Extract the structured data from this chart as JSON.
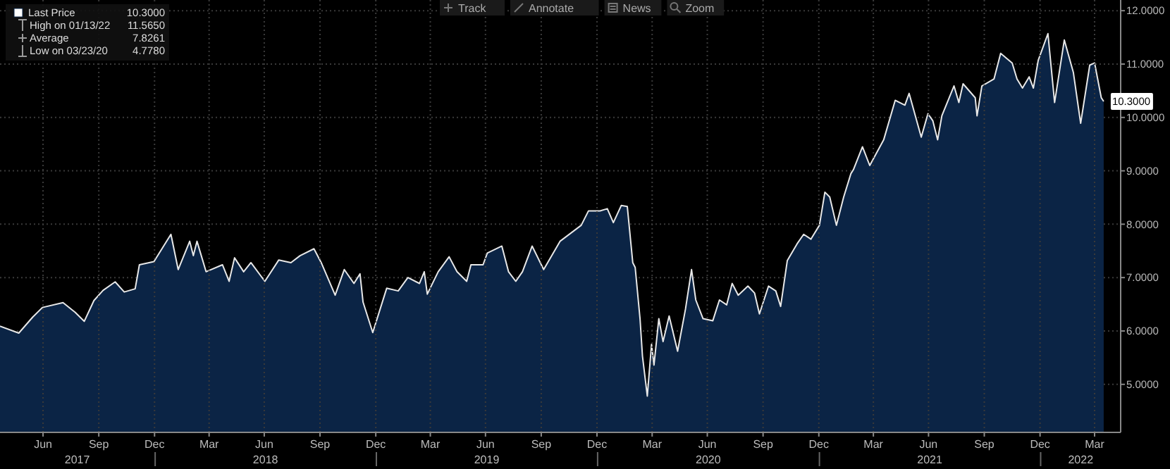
{
  "chart_data": {
    "type": "area",
    "legend": "top left",
    "grid": true,
    "xlim": [
      "2017-04-20",
      "2022-05-13"
    ],
    "xticks": [
      {
        "value": "2017-06-30",
        "label": "Jun"
      },
      {
        "value": "2017-09-30",
        "label": "Sep"
      },
      {
        "value": "2017-12-31",
        "label": "Dec"
      },
      {
        "value": "2018-03-31",
        "label": "Mar"
      },
      {
        "value": "2018-06-30",
        "label": "Jun"
      },
      {
        "value": "2018-09-30",
        "label": "Sep"
      },
      {
        "value": "2018-12-31",
        "label": "Dec"
      },
      {
        "value": "2019-03-31",
        "label": "Mar"
      },
      {
        "value": "2019-06-30",
        "label": "Jun"
      },
      {
        "value": "2019-09-30",
        "label": "Sep"
      },
      {
        "value": "2019-12-31",
        "label": "Dec"
      },
      {
        "value": "2020-03-31",
        "label": "Mar"
      },
      {
        "value": "2020-06-30",
        "label": "Jun"
      },
      {
        "value": "2020-09-30",
        "label": "Sep"
      },
      {
        "value": "2020-12-31",
        "label": "Dec"
      },
      {
        "value": "2021-03-31",
        "label": "Mar"
      },
      {
        "value": "2021-06-30",
        "label": "Jun"
      },
      {
        "value": "2021-09-30",
        "label": "Sep"
      },
      {
        "value": "2021-12-31",
        "label": "Dec"
      },
      {
        "value": "2022-03-31",
        "label": "Mar"
      }
    ],
    "ylim": [
      4.1,
      12.2
    ],
    "yticks": [
      {
        "value": 5,
        "label": "5.0000"
      },
      {
        "value": 6,
        "label": "6.0000"
      },
      {
        "value": 7,
        "label": "7.0000"
      },
      {
        "value": 8,
        "label": "8.0000"
      },
      {
        "value": 9,
        "label": "9.0000"
      },
      {
        "value": 10,
        "label": "10.0000"
      },
      {
        "value": 11,
        "label": "11.0000"
      },
      {
        "value": 12,
        "label": "12.0000"
      }
    ],
    "x": [
      "2017-04-20",
      "2017-05-21",
      "2017-06-13",
      "2017-06-29",
      "2017-08-02",
      "2017-08-22",
      "2017-09-06",
      "2017-09-22",
      "2017-10-07",
      "2017-10-27",
      "2017-11-11",
      "2017-11-29",
      "2017-12-06",
      "2017-12-30",
      "2018-01-27",
      "2018-02-08",
      "2018-02-27",
      "2018-03-05",
      "2018-03-11",
      "2018-03-26",
      "2018-04-22",
      "2018-05-03",
      "2018-05-12",
      "2018-05-27",
      "2018-06-08",
      "2018-07-01",
      "2018-07-24",
      "2018-08-13",
      "2018-08-28",
      "2018-09-20",
      "2018-10-02",
      "2018-10-25",
      "2018-11-09",
      "2018-11-25",
      "2018-12-05",
      "2018-12-10",
      "2018-12-26",
      "2019-01-18",
      "2019-02-06",
      "2019-02-22",
      "2019-03-13",
      "2019-03-21",
      "2019-03-26",
      "2019-04-13",
      "2019-05-01",
      "2019-05-14",
      "2019-05-30",
      "2019-06-06",
      "2019-06-26",
      "2019-07-03",
      "2019-07-27",
      "2019-08-07",
      "2019-08-19",
      "2019-08-30",
      "2019-09-15",
      "2019-10-04",
      "2019-10-31",
      "2019-12-05",
      "2019-12-17",
      "2020-01-05",
      "2020-01-17",
      "2020-01-27",
      "2020-02-09",
      "2020-02-19",
      "2020-02-28",
      "2020-03-03",
      "2020-03-11",
      "2020-03-15",
      "2020-03-23",
      "2020-03-30",
      "2020-04-03",
      "2020-04-11",
      "2020-04-18",
      "2020-04-28",
      "2020-05-12",
      "2020-05-25",
      "2020-06-04",
      "2020-06-11",
      "2020-06-23",
      "2020-07-09",
      "2020-07-20",
      "2020-08-01",
      "2020-08-10",
      "2020-08-20",
      "2020-09-05",
      "2020-09-16",
      "2020-09-24",
      "2020-10-09",
      "2020-10-21",
      "2020-10-29",
      "2020-11-09",
      "2020-11-25",
      "2020-12-06",
      "2020-12-18",
      "2021-01-01",
      "2021-01-10",
      "2021-01-18",
      "2021-01-29",
      "2021-02-10",
      "2021-02-22",
      "2021-02-26",
      "2021-03-13",
      "2021-03-25",
      "2021-04-17",
      "2021-05-06",
      "2021-05-22",
      "2021-05-29",
      "2021-06-18",
      "2021-06-29",
      "2021-07-07",
      "2021-07-15",
      "2021-07-22",
      "2021-08-11",
      "2021-08-19",
      "2021-08-26",
      "2021-09-15",
      "2021-09-18",
      "2021-09-26",
      "2021-10-16",
      "2021-10-27",
      "2021-11-15",
      "2021-11-23",
      "2021-12-02",
      "2021-12-13",
      "2021-12-20",
      "2021-12-28",
      "2022-01-13",
      "2022-01-24",
      "2022-02-09",
      "2022-02-24",
      "2022-03-08",
      "2022-03-23",
      "2022-03-31",
      "2022-04-11",
      "2022-04-15"
    ],
    "series": [
      {
        "name": "Last Price",
        "color": "#0b2445",
        "values": [
          6.09,
          5.96,
          6.26,
          6.44,
          6.53,
          6.35,
          6.18,
          6.57,
          6.76,
          6.92,
          6.73,
          6.79,
          7.24,
          7.3,
          7.81,
          7.15,
          7.68,
          7.41,
          7.68,
          7.11,
          7.24,
          6.93,
          7.37,
          7.11,
          7.28,
          6.93,
          7.33,
          7.28,
          7.41,
          7.54,
          7.28,
          6.67,
          7.15,
          6.89,
          7.07,
          6.54,
          5.97,
          6.8,
          6.75,
          7.0,
          6.89,
          7.11,
          6.69,
          7.11,
          7.39,
          7.11,
          6.93,
          7.24,
          7.24,
          7.46,
          7.59,
          7.11,
          6.93,
          7.11,
          7.59,
          7.15,
          7.68,
          7.98,
          8.25,
          8.25,
          8.29,
          8.03,
          8.35,
          8.33,
          7.28,
          7.19,
          6.23,
          5.53,
          4.78,
          5.75,
          5.36,
          6.23,
          5.8,
          6.28,
          5.62,
          6.41,
          7.15,
          6.58,
          6.23,
          6.19,
          6.58,
          6.49,
          6.89,
          6.67,
          6.84,
          6.71,
          6.32,
          6.84,
          6.75,
          6.46,
          7.32,
          7.63,
          7.81,
          7.72,
          7.98,
          8.6,
          8.51,
          7.98,
          8.51,
          8.95,
          9.02,
          9.45,
          9.1,
          9.58,
          10.32,
          10.23,
          10.45,
          9.63,
          10.07,
          9.94,
          9.58,
          10.03,
          10.59,
          10.28,
          10.63,
          10.37,
          10.03,
          10.59,
          10.72,
          11.2,
          11.02,
          10.72,
          10.55,
          10.76,
          10.55,
          11.07,
          11.57,
          10.28,
          11.45,
          10.84,
          9.89,
          10.98,
          11.02,
          10.37,
          10.3
        ]
      }
    ],
    "annotations": [
      "10.3000",
      "High on 01/13/22 11.5650",
      "Average 7.8261",
      "Low on 03/23/20 4.7780",
      "Track",
      "Annotate",
      "News",
      "Zoom",
      "2017",
      "2018",
      "2019",
      "2020",
      "2021",
      "2022",
      {
        "text": "10.3000",
        "x": "2022-04-15",
        "y": 10.3
      }
    ]
  }
}
